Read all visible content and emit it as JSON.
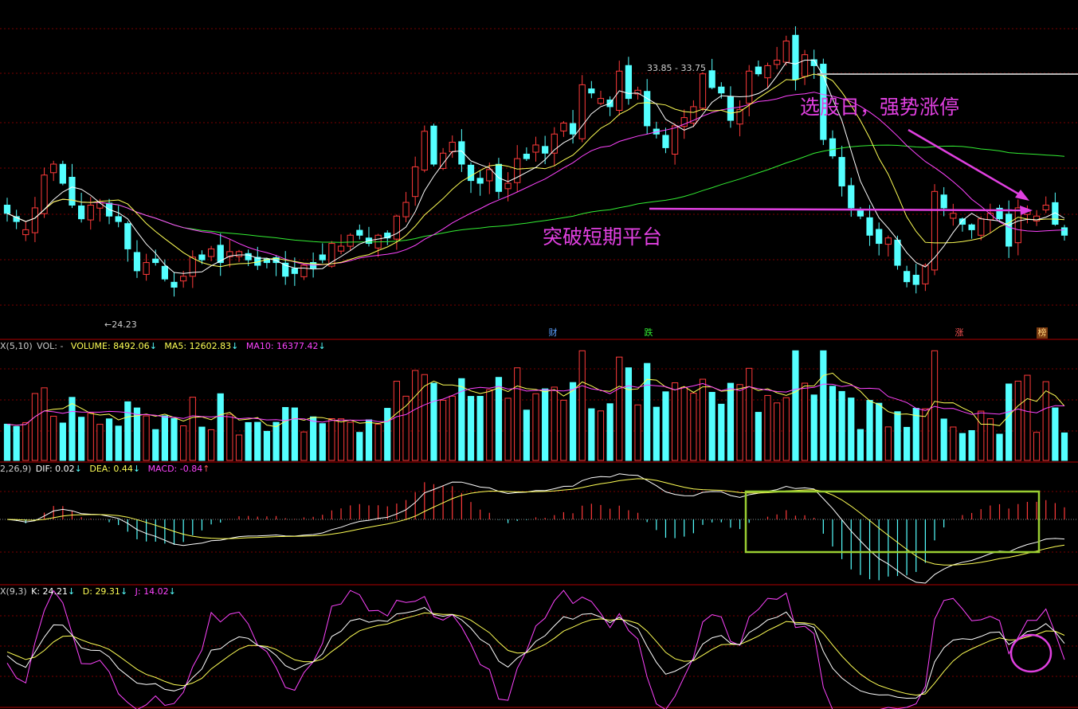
{
  "colors": {
    "up": "#ff3a3a",
    "down": "#54ffff",
    "ma5": "#ffffff",
    "ma10": "#ffff55",
    "ma20": "#ff44ff",
    "ma60": "#33ee33",
    "grid": "#7a0000",
    "annotation": "#e040e0",
    "box": "#9acd32"
  },
  "price_panel": {
    "high_label": "33.85 - 33.75",
    "low_label": "24.23",
    "badges": [
      "财",
      "跌",
      "涨",
      "榜"
    ]
  },
  "volume_panel": {
    "prefix": "X(5,10)",
    "name": "VOL: -",
    "volume": "VOLUME: 8492.06",
    "ma5": "MA5: 12602.83",
    "ma10": "MA10: 16377.42"
  },
  "macd_panel": {
    "prefix": "2,26,9)",
    "dif": "DIF: 0.02",
    "dea": "DEA: 0.44",
    "macd": "MACD: -0.84"
  },
  "kdj_panel": {
    "prefix": "X(9,3)",
    "k": "K: 24.21",
    "d": "D: 29.31",
    "j": "J: 14.02"
  },
  "annotations": {
    "select_day": "选股日，强势涨停",
    "breakout": "突破短期平台"
  },
  "chart_data": {
    "type": "candlestick",
    "candle_count": 115,
    "price_ylim": [
      23.0,
      35.0
    ],
    "low_point": 24.23,
    "high_point": 33.85,
    "platform_level": 27.4,
    "close": [
      27.2,
      26.9,
      26.6,
      27.4,
      28.6,
      29.0,
      28.3,
      27.5,
      27.0,
      27.5,
      27.6,
      27.1,
      26.9,
      25.9,
      25.1,
      25.4,
      25.4,
      24.8,
      24.5,
      24.9,
      25.6,
      25.5,
      25.9,
      25.4,
      25.8,
      25.8,
      25.5,
      25.3,
      25.4,
      25.4,
      24.9,
      25.0,
      25.3,
      25.2,
      25.5,
      26.1,
      26.0,
      26.4,
      26.4,
      26.1,
      26.4,
      26.3,
      27.1,
      27.6,
      28.9,
      30.2,
      29.0,
      29.4,
      29.8,
      29.0,
      28.4,
      28.3,
      28.8,
      28.0,
      28.3,
      29.2,
      29.2,
      29.7,
      29.4,
      30.1,
      30.5,
      30.1,
      31.9,
      31.6,
      31.4,
      31.1,
      32.4,
      31.4,
      31.7,
      30.4,
      30.1,
      29.6,
      30.4,
      30.7,
      31.1,
      32.3,
      31.8,
      31.6,
      30.6,
      31.0,
      32.4,
      32.3,
      32.6,
      32.8,
      33.5,
      32.1,
      33.0,
      32.6,
      29.9,
      29.3,
      28.2,
      27.4,
      27.1,
      26.4,
      26.1,
      26.3,
      25.3,
      24.7,
      24.6,
      25.3,
      28.0,
      27.4,
      27.2,
      26.8,
      26.6,
      27.0,
      27.2,
      27.0,
      26.0,
      27.4,
      27.3,
      27.1,
      27.5,
      26.8,
      26.4
    ],
    "volume_ylim": [
      0,
      33000
    ],
    "macd_ylim": [
      -1.6,
      1.2
    ],
    "kdj_ylim": [
      0,
      100
    ]
  }
}
